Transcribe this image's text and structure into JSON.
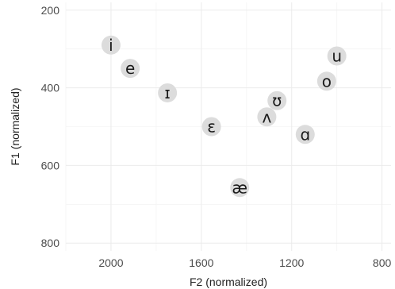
{
  "chart_data": {
    "type": "scatter",
    "title": "",
    "xlabel": "F2 (normalized)",
    "ylabel": "F1 (normalized)",
    "x_reversed": true,
    "y_reversed": true,
    "xlim": [
      2200,
      760
    ],
    "ylim": [
      180,
      820
    ],
    "x_ticks": [
      2000,
      1600,
      1200,
      800
    ],
    "y_ticks": [
      200,
      400,
      600,
      800
    ],
    "grid": true,
    "points": [
      {
        "label": "i",
        "x": 2000,
        "y": 290
      },
      {
        "label": "e",
        "x": 1915,
        "y": 350
      },
      {
        "label": "ɪ",
        "x": 1750,
        "y": 413
      },
      {
        "label": "ɛ",
        "x": 1555,
        "y": 500
      },
      {
        "label": "æ",
        "x": 1430,
        "y": 657
      },
      {
        "label": "ʌ",
        "x": 1310,
        "y": 475
      },
      {
        "label": "ʊ",
        "x": 1265,
        "y": 433
      },
      {
        "label": "ɑ",
        "x": 1140,
        "y": 520
      },
      {
        "label": "o",
        "x": 1045,
        "y": 383
      },
      {
        "label": "u",
        "x": 1000,
        "y": 318
      }
    ]
  }
}
